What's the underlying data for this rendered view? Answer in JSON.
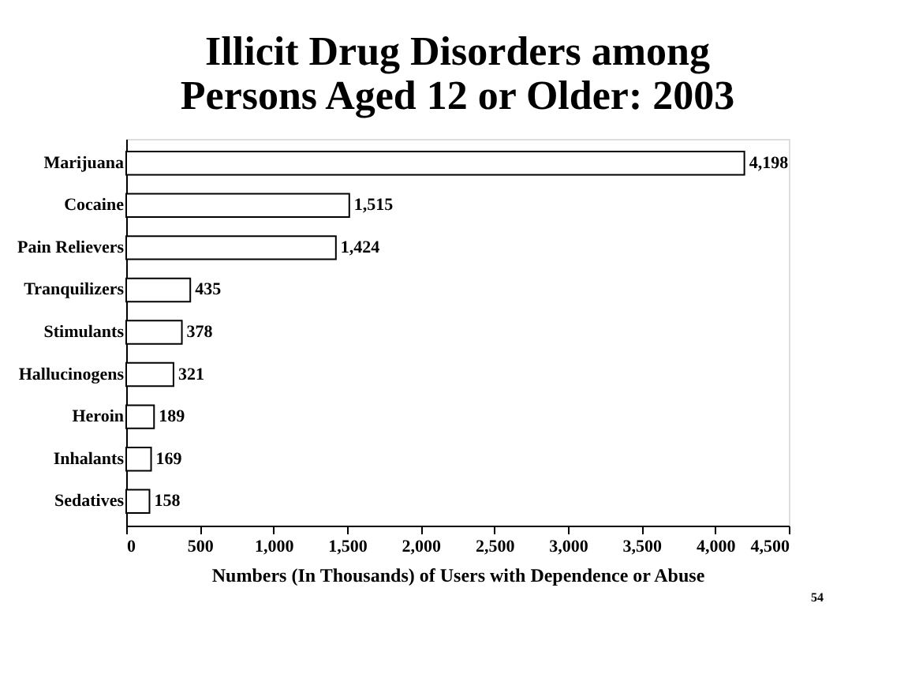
{
  "chart_data": {
    "type": "bar",
    "orientation": "horizontal",
    "title": "Illicit Drug Disorders among Persons Aged 12 or Older: 2003",
    "xlabel": "Numbers (In Thousands) of Users with Dependence or Abuse",
    "categories": [
      "Marijuana",
      "Cocaine",
      "Pain Relievers",
      "Tranquilizers",
      "Stimulants",
      "Hallucinogens",
      "Heroin",
      "Inhalants",
      "Sedatives"
    ],
    "values": [
      4198,
      1515,
      1424,
      435,
      378,
      321,
      189,
      169,
      158
    ],
    "value_labels": [
      "4,198",
      "1,515",
      "1,424",
      "435",
      "378",
      "321",
      "189",
      "169",
      "158"
    ],
    "color": "#ffffff",
    "xlim": [
      0,
      4500
    ],
    "xticks": [
      0,
      500,
      {
        "value": 1000,
        "label": "1,000"
      },
      {
        "value": 1500,
        "label": "1,500"
      },
      {
        "value": 2000,
        "label": "2,000"
      },
      {
        "value": 2500,
        "label": "2,500"
      },
      {
        "value": 3000,
        "label": "3,000"
      },
      {
        "value": 3500,
        "label": "3,500"
      },
      {
        "value": 4000,
        "label": "4,000"
      },
      {
        "value": 4500,
        "label": "4,500"
      }
    ],
    "grid": false,
    "annotations": [
      "54"
    ]
  }
}
